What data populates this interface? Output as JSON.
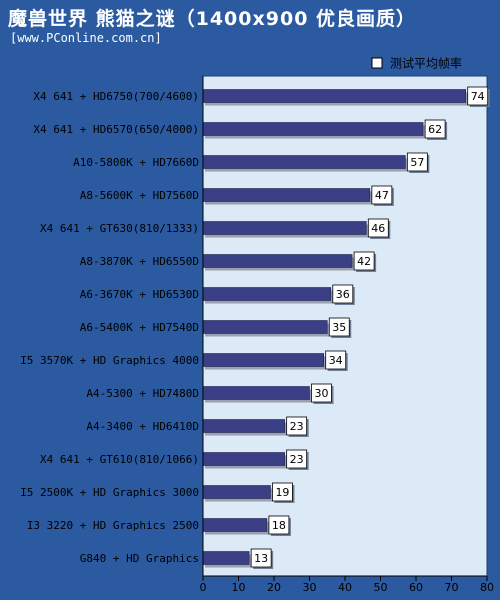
{
  "header": {
    "title": "魔兽世界 熊猫之谜（1400x900 优良画质）",
    "source": "[www.PConline.com.cn]"
  },
  "colors": {
    "background": "#2b5aa0",
    "plot_area": "#dbeaf6",
    "bar": "#3b3f86",
    "bar_shadow": "#9aa0b0",
    "label_box": "#ffffff"
  },
  "chart_data": {
    "type": "bar",
    "orientation": "horizontal",
    "categories": [
      "X4 641 + HD6750(700/4600)",
      "X4 641 + HD6570(650/4000)",
      "A10-5800K + HD7660D",
      "A8-5600K + HD7560D",
      "X4 641 + GT630(810/1333)",
      "A8-3870K + HD6550D",
      "A6-3670K + HD6530D",
      "A6-5400K + HD7540D",
      "I5 3570K + HD Graphics 4000",
      "A4-5300 + HD7480D",
      "A4-3400 + HD6410D",
      "X4 641 + GT610(810/1066)",
      "I5 2500K + HD Graphics 3000",
      "I3 3220 + HD Graphics 2500",
      "G840 + HD Graphics"
    ],
    "series": [
      {
        "name": "测试平均帧率",
        "values": [
          74,
          62,
          57,
          47,
          46,
          42,
          36,
          35,
          34,
          30,
          23,
          23,
          19,
          18,
          13
        ]
      }
    ],
    "xlim": [
      0,
      80
    ],
    "xticks": [
      "0",
      "10",
      "20",
      "30",
      "40",
      "50",
      "60",
      "70",
      "80"
    ],
    "legend_position": "top-right",
    "grid": false
  }
}
